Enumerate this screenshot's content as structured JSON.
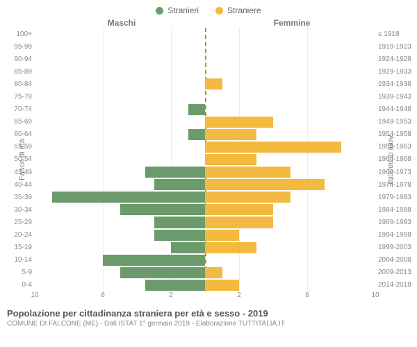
{
  "legend": {
    "male": {
      "label": "Stranieri",
      "color": "#6b9a6b"
    },
    "female": {
      "label": "Straniere",
      "color": "#f4b93f"
    }
  },
  "headers": {
    "maschi": "Maschi",
    "femmine": "Femmine"
  },
  "y_axis_left": {
    "title": "Fasce di età"
  },
  "y_axis_right": {
    "title": "Anni di nascita"
  },
  "chart": {
    "type": "population-pyramid",
    "x_max": 10,
    "x_ticks": [
      10,
      6,
      2,
      2,
      6,
      10
    ],
    "centerline_color": "#9a9a3a",
    "grid_color": "#eeeeee",
    "rows": [
      {
        "age": "100+",
        "birth": "≤ 1918",
        "m": 0,
        "f": 0
      },
      {
        "age": "95-99",
        "birth": "1919-1923",
        "m": 0,
        "f": 0
      },
      {
        "age": "90-94",
        "birth": "1924-1928",
        "m": 0,
        "f": 0
      },
      {
        "age": "85-89",
        "birth": "1929-1933",
        "m": 0,
        "f": 0
      },
      {
        "age": "80-84",
        "birth": "1934-1938",
        "m": 0,
        "f": 1
      },
      {
        "age": "75-79",
        "birth": "1939-1943",
        "m": 0,
        "f": 0
      },
      {
        "age": "70-74",
        "birth": "1944-1948",
        "m": 1,
        "f": 0
      },
      {
        "age": "65-69",
        "birth": "1949-1953",
        "m": 0,
        "f": 4
      },
      {
        "age": "60-64",
        "birth": "1954-1958",
        "m": 1,
        "f": 3
      },
      {
        "age": "55-59",
        "birth": "1959-1963",
        "m": 0,
        "f": 8
      },
      {
        "age": "50-54",
        "birth": "1964-1968",
        "m": 0,
        "f": 3
      },
      {
        "age": "45-49",
        "birth": "1969-1973",
        "m": 3.5,
        "f": 5
      },
      {
        "age": "40-44",
        "birth": "1974-1978",
        "m": 3,
        "f": 7
      },
      {
        "age": "35-39",
        "birth": "1979-1983",
        "m": 9,
        "f": 5
      },
      {
        "age": "30-34",
        "birth": "1984-1988",
        "m": 5,
        "f": 4
      },
      {
        "age": "25-29",
        "birth": "1989-1993",
        "m": 3,
        "f": 4
      },
      {
        "age": "20-24",
        "birth": "1994-1998",
        "m": 3,
        "f": 2
      },
      {
        "age": "15-19",
        "birth": "1999-2003",
        "m": 2,
        "f": 3
      },
      {
        "age": "10-14",
        "birth": "2004-2008",
        "m": 6,
        "f": 0
      },
      {
        "age": "5-9",
        "birth": "2009-2013",
        "m": 5,
        "f": 1
      },
      {
        "age": "0-4",
        "birth": "2014-2018",
        "m": 3.5,
        "f": 2
      }
    ]
  },
  "footer": {
    "title": "Popolazione per cittadinanza straniera per età e sesso - 2019",
    "subtitle": "COMUNE DI FALCONE (ME) - Dati ISTAT 1° gennaio 2019 - Elaborazione TUTTITALIA.IT"
  }
}
